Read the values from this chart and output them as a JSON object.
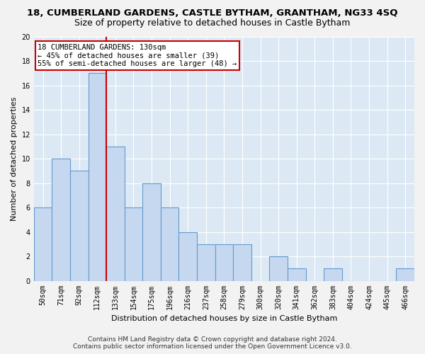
{
  "title": "18, CUMBERLAND GARDENS, CASTLE BYTHAM, GRANTHAM, NG33 4SQ",
  "subtitle": "Size of property relative to detached houses in Castle Bytham",
  "xlabel": "Distribution of detached houses by size in Castle Bytham",
  "ylabel": "Number of detached properties",
  "footer_line1": "Contains HM Land Registry data © Crown copyright and database right 2024.",
  "footer_line2": "Contains public sector information licensed under the Open Government Licence v3.0.",
  "categories": [
    "50sqm",
    "71sqm",
    "92sqm",
    "112sqm",
    "133sqm",
    "154sqm",
    "175sqm",
    "196sqm",
    "216sqm",
    "237sqm",
    "258sqm",
    "279sqm",
    "300sqm",
    "320sqm",
    "341sqm",
    "362sqm",
    "383sqm",
    "404sqm",
    "424sqm",
    "445sqm",
    "466sqm"
  ],
  "values": [
    6,
    10,
    9,
    17,
    11,
    6,
    8,
    6,
    4,
    3,
    3,
    3,
    0,
    2,
    1,
    0,
    1,
    0,
    0,
    0,
    1
  ],
  "bar_color": "#c5d8f0",
  "bar_edge_color": "#6699cc",
  "vline_index": 3.5,
  "property_line_label": "18 CUMBERLAND GARDENS: 130sqm",
  "annotation_line1": "← 45% of detached houses are smaller (39)",
  "annotation_line2": "55% of semi-detached houses are larger (48) →",
  "annotation_box_facecolor": "#ffffff",
  "annotation_box_edgecolor": "#cc0000",
  "vline_color": "#cc0000",
  "ylim": [
    0,
    20
  ],
  "yticks": [
    0,
    2,
    4,
    6,
    8,
    10,
    12,
    14,
    16,
    18,
    20
  ],
  "bg_color": "#dce9f5",
  "grid_color": "#ffffff",
  "title_fontsize": 9.5,
  "subtitle_fontsize": 9,
  "axis_label_fontsize": 8,
  "tick_fontsize": 7,
  "footer_fontsize": 6.5
}
